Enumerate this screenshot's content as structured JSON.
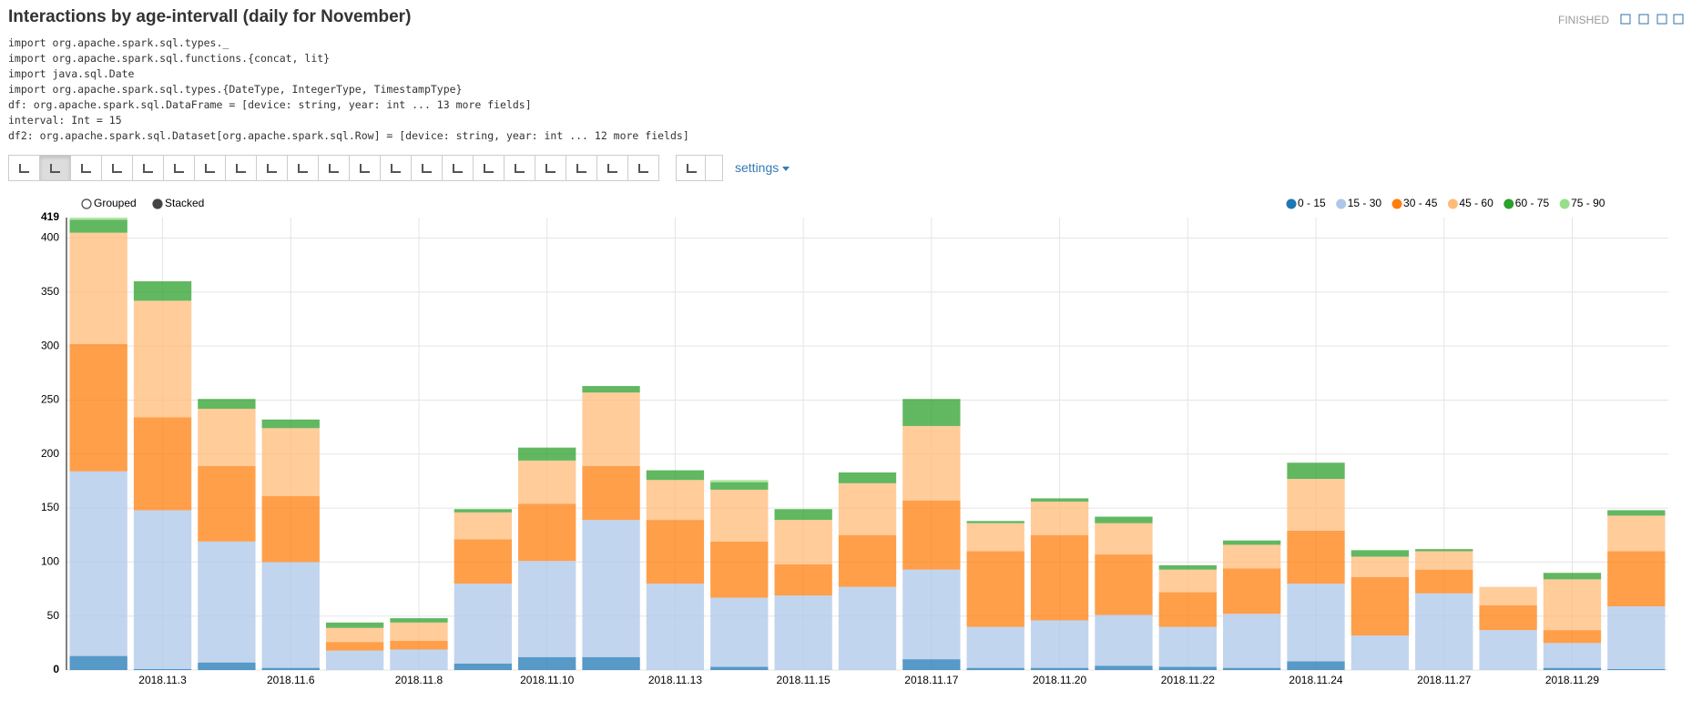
{
  "paragraph": {
    "title": "Interactions by age-intervall (daily for November)",
    "status": "FINISHED",
    "output": [
      "import org.apache.spark.sql.types._",
      "import org.apache.spark.sql.functions.{concat, lit}",
      "import java.sql.Date",
      "import org.apache.spark.sql.types.{DateType, IntegerType, TimestampType}",
      "df: org.apache.spark.sql.DataFrame = [device: string, year: int ... 13 more fields]",
      "interval: Int = 15",
      "df2: org.apache.spark.sql.Dataset[org.apache.spark.sql.Row] = [device: string, year: int ... 12 more fields]"
    ],
    "settings_label": "settings"
  },
  "chart_data": {
    "type": "stacked_bar",
    "controls": [
      "Grouped",
      "Stacked"
    ],
    "mode": "Stacked",
    "categories": [
      null,
      "2018.11.3",
      null,
      "2018.11.6",
      null,
      "2018.11.8",
      null,
      "2018.11.10",
      null,
      "2018.11.13",
      null,
      "2018.11.15",
      null,
      "2018.11.17",
      null,
      "2018.11.20",
      null,
      "2018.11.22",
      null,
      "2018.11.24",
      null,
      "2018.11.27",
      null,
      "2018.11.29",
      null
    ],
    "series": [
      {
        "name": "0 - 15",
        "color": "#1f77b4",
        "values": [
          13,
          1,
          7,
          2,
          0,
          0,
          6,
          12,
          12,
          0,
          3,
          0,
          0,
          10,
          2,
          2,
          4,
          3,
          2,
          8,
          0,
          0,
          0,
          2,
          1
        ]
      },
      {
        "name": "15 - 30",
        "color": "#aec7e8",
        "values": [
          171,
          147,
          112,
          98,
          18,
          19,
          74,
          89,
          127,
          80,
          64,
          69,
          77,
          83,
          38,
          44,
          47,
          37,
          50,
          72,
          32,
          71,
          37,
          23,
          58
        ]
      },
      {
        "name": "30 - 45",
        "color": "#ff7f0e",
        "values": [
          118,
          86,
          70,
          61,
          8,
          8,
          41,
          53,
          50,
          59,
          52,
          29,
          48,
          64,
          70,
          79,
          56,
          32,
          42,
          49,
          54,
          22,
          23,
          12,
          51
        ]
      },
      {
        "name": "45 - 60",
        "color": "#ffbb78",
        "values": [
          103,
          108,
          53,
          63,
          13,
          17,
          25,
          40,
          68,
          37,
          48,
          41,
          48,
          69,
          26,
          31,
          29,
          21,
          22,
          48,
          19,
          17,
          17,
          47,
          33
        ]
      },
      {
        "name": "60 - 75",
        "color": "#2ca02c",
        "values": [
          12,
          18,
          9,
          8,
          5,
          4,
          3,
          12,
          6,
          9,
          7,
          10,
          10,
          25,
          2,
          3,
          6,
          4,
          4,
          15,
          6,
          2,
          0,
          6,
          5
        ]
      },
      {
        "name": "75 - 90",
        "color": "#98df8a",
        "values": [
          2,
          0,
          0,
          0,
          0,
          0,
          0,
          0,
          0,
          0,
          2,
          0,
          0,
          0,
          0,
          0,
          0,
          0,
          0,
          0,
          0,
          0,
          0,
          0,
          0
        ]
      }
    ],
    "ylim": [
      0,
      419
    ],
    "yticks": [
      0,
      50,
      100,
      150,
      200,
      250,
      300,
      350,
      400,
      419
    ],
    "grid": true,
    "legend": "top-right"
  }
}
